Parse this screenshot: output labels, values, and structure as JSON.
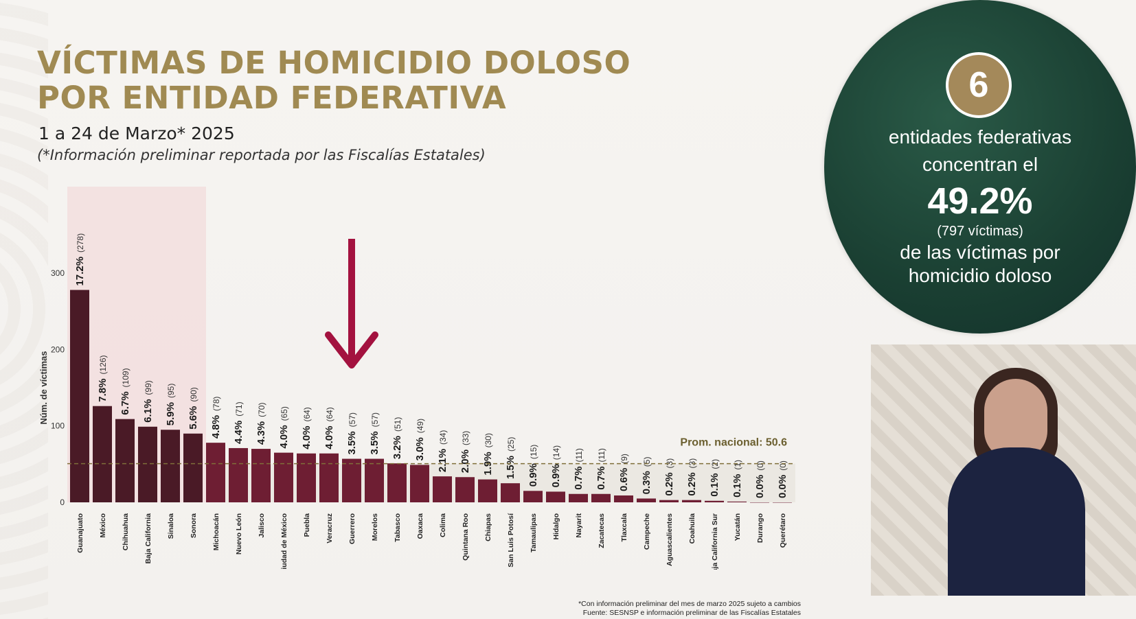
{
  "header": {
    "title_line1": "VÍCTIMAS DE HOMICIDIO DOLOSO",
    "title_line2": "POR ENTIDAD FEDERATIVA",
    "subtitle": "1 a 24 de Marzo* 2025",
    "note": "(*Información preliminar reportada por las Fiscalías Estatales)"
  },
  "chart_data": {
    "type": "bar",
    "ylabel": "Núm. de víctimas",
    "ylim": [
      0,
      300
    ],
    "yticks": [
      "0",
      "100",
      "200",
      "300"
    ],
    "categories": [
      "Guanajuato",
      "México",
      "Chihuahua",
      "Baja California",
      "Sinaloa",
      "Sonora",
      "Michoacán",
      "Nuevo León",
      "Jalisco",
      "Ciudad de México",
      "Puebla",
      "Veracruz",
      "Guerrero",
      "Morelos",
      "Tabasco",
      "Oaxaca",
      "Colima",
      "Quintana Roo",
      "Chiapas",
      "San Luis Potosí",
      "Tamaulipas",
      "Hidalgo",
      "Nayarit",
      "Zacatecas",
      "Tlaxcala",
      "Campeche",
      "Aguascalientes",
      "Coahuila",
      "Baja California Sur",
      "Yucatán",
      "Durango",
      "Querétaro"
    ],
    "values": [
      278,
      126,
      109,
      99,
      95,
      90,
      78,
      71,
      70,
      65,
      64,
      64,
      57,
      57,
      51,
      49,
      34,
      33,
      30,
      25,
      15,
      14,
      11,
      11,
      9,
      5,
      3,
      3,
      2,
      1,
      0,
      0
    ],
    "pct_labels": [
      "17.2%",
      "7.8%",
      "6.7%",
      "6.1%",
      "5.9%",
      "5.6%",
      "4.8%",
      "4.4%",
      "4.3%",
      "4.0%",
      "4.0%",
      "4.0%",
      "3.5%",
      "3.5%",
      "3.2%",
      "3.0%",
      "2.1%",
      "2.0%",
      "1.9%",
      "1.5%",
      "0.9%",
      "0.9%",
      "0.7%",
      "0.7%",
      "0.6%",
      "0.3%",
      "0.2%",
      "0.2%",
      "0.1%",
      "0.1%",
      "0.0%",
      "0.0%"
    ],
    "count_labels": [
      "(278)",
      "(126)",
      "(109)",
      "(99)",
      "(95)",
      "(90)",
      "(78)",
      "(71)",
      "(70)",
      "(65)",
      "(64)",
      "(64)",
      "(57)",
      "(57)",
      "(51)",
      "(49)",
      "(34)",
      "(33)",
      "(30)",
      "(25)",
      "(15)",
      "(14)",
      "(11)",
      "(11)",
      "(9)",
      "(5)",
      "(3)",
      "(3)",
      "(2)",
      "(1)",
      "(0)",
      "(0)"
    ],
    "average": 50.6,
    "average_label": "Prom. nacional: 50.6",
    "highlighted_count": 6,
    "arrow_target": "Guerrero",
    "colors": {
      "top_bars": "#4a1a26",
      "other_bars": "#6e1e33",
      "highlight_bg": "#f2dede",
      "arrow": "#a3123f",
      "avg_line": "#7f6f3a"
    }
  },
  "footnote": {
    "line1": "*Con información preliminar del mes de marzo 2025 sujeto a cambios",
    "line2": "Fuente: SESNSP e información preliminar de las Fiscalías Estatales"
  },
  "summary": {
    "count": "6",
    "line1": "entidades federativas",
    "line2": "concentran el",
    "percent": "49.2%",
    "victims": "(797 víctimas)",
    "line3": "de las víctimas por",
    "line4": "homicidio doloso"
  },
  "interpreter": {
    "icon": "sign-language-interpreter"
  }
}
